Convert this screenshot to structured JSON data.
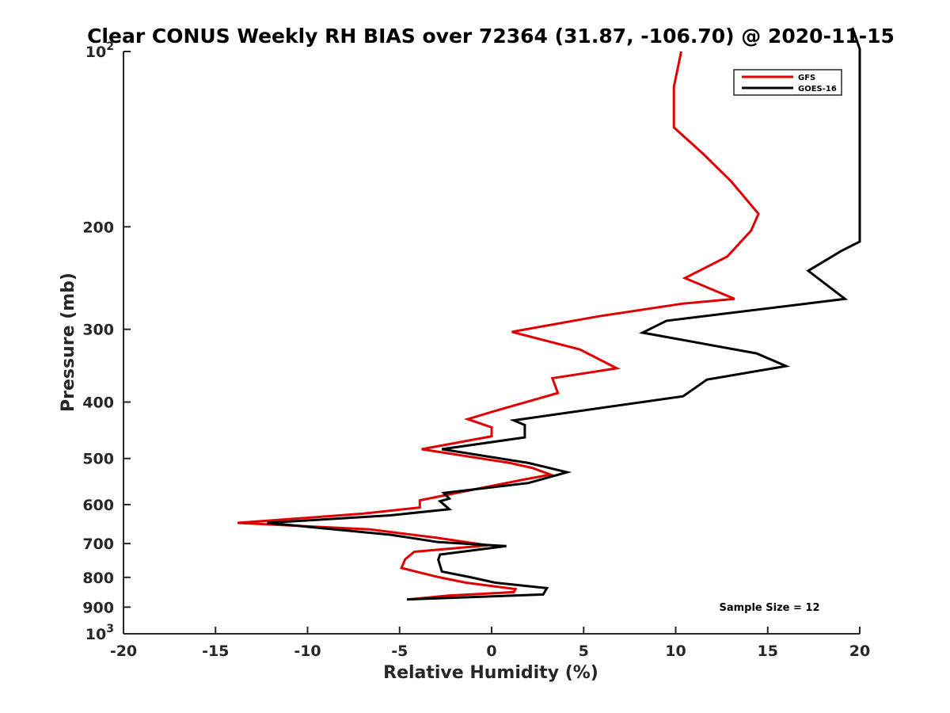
{
  "chart_data": {
    "type": "line",
    "title": "Clear CONUS Weekly RH BIAS over 72364 (31.87, -106.70) @ 2020-11-15",
    "xlabel": "Relative Humidity (%)",
    "ylabel": "Pressure (mb)",
    "xlim": [
      -20,
      20
    ],
    "ylim": [
      100,
      1000
    ],
    "yscale": "log",
    "y_reversed": true,
    "grid": false,
    "legend_position": "top-right",
    "x_ticks": [
      "-20",
      "-15",
      "-10",
      "-5",
      "0",
      "5",
      "10",
      "15",
      "20"
    ],
    "y_ticks": [
      {
        "value": 100,
        "base": "10",
        "exp": "2"
      },
      {
        "value": 200,
        "label": "200"
      },
      {
        "value": 300,
        "label": "300"
      },
      {
        "value": 400,
        "label": "400"
      },
      {
        "value": 500,
        "label": "500"
      },
      {
        "value": 600,
        "label": "600"
      },
      {
        "value": 700,
        "label": "700"
      },
      {
        "value": 800,
        "label": "800"
      },
      {
        "value": 900,
        "label": "900"
      },
      {
        "value": 1000,
        "base": "10",
        "exp": "3"
      }
    ],
    "series": [
      {
        "name": "GFS",
        "color": "#e00000",
        "points": [
          [
            10.3,
            100
          ],
          [
            9.9,
            115
          ],
          [
            9.9,
            135
          ],
          [
            11.5,
            150
          ],
          [
            13.0,
            167
          ],
          [
            14.5,
            190
          ],
          [
            14.1,
            203
          ],
          [
            12.8,
            225
          ],
          [
            10.5,
            245
          ],
          [
            13.2,
            266
          ],
          [
            10.4,
            271
          ],
          [
            5.8,
            285
          ],
          [
            1.1,
            303
          ],
          [
            4.8,
            325
          ],
          [
            6.8,
            350
          ],
          [
            3.3,
            364
          ],
          [
            3.6,
            386
          ],
          [
            0.1,
            415
          ],
          [
            -1.3,
            428
          ],
          [
            0.0,
            442
          ],
          [
            0.0,
            458
          ],
          [
            -3.8,
            482
          ],
          [
            1.0,
            509
          ],
          [
            2.2,
            519
          ],
          [
            3.2,
            533
          ],
          [
            1.8,
            543
          ],
          [
            -2.4,
            577
          ],
          [
            -3.9,
            590
          ],
          [
            -3.9,
            607
          ],
          [
            -7.0,
            622
          ],
          [
            -13.8,
            645
          ],
          [
            -6.6,
            662
          ],
          [
            -3.0,
            684
          ],
          [
            -0.2,
            705
          ],
          [
            -4.2,
            723
          ],
          [
            -4.7,
            745
          ],
          [
            -4.9,
            771
          ],
          [
            -2.9,
            799
          ],
          [
            -1.4,
            817
          ],
          [
            1.3,
            838
          ],
          [
            1.2,
            848
          ],
          [
            -2.4,
            860
          ],
          [
            -4.5,
            873
          ]
        ]
      },
      {
        "name": "GOES-16",
        "color": "#000000",
        "points": [
          [
            19.6,
            91
          ],
          [
            20.0,
            99
          ],
          [
            20.0,
            212
          ],
          [
            19.0,
            220
          ],
          [
            17.2,
            238
          ],
          [
            19.2,
            266
          ],
          [
            9.5,
            290
          ],
          [
            8.2,
            304
          ],
          [
            14.4,
            330
          ],
          [
            16.0,
            347
          ],
          [
            11.7,
            366
          ],
          [
            10.4,
            391
          ],
          [
            1.2,
            430
          ],
          [
            1.8,
            438
          ],
          [
            1.8,
            460
          ],
          [
            -2.7,
            482
          ],
          [
            2.0,
            509
          ],
          [
            4.1,
            528
          ],
          [
            2.0,
            551
          ],
          [
            -2.6,
            573
          ],
          [
            -2.3,
            586
          ],
          [
            -2.8,
            592
          ],
          [
            -2.3,
            611
          ],
          [
            -5.5,
            626
          ],
          [
            -12.2,
            645
          ],
          [
            -5.5,
            676
          ],
          [
            -2.9,
            696
          ],
          [
            0.8,
            707
          ],
          [
            -2.8,
            731
          ],
          [
            -2.9,
            746
          ],
          [
            -2.7,
            782
          ],
          [
            -1.2,
            799
          ],
          [
            0.2,
            817
          ],
          [
            3.0,
            835
          ],
          [
            2.8,
            856
          ],
          [
            -4.6,
            873
          ]
        ]
      }
    ],
    "annotations": [
      {
        "text": "Sample Size = 12",
        "x": 15.5,
        "y": 880
      }
    ]
  }
}
